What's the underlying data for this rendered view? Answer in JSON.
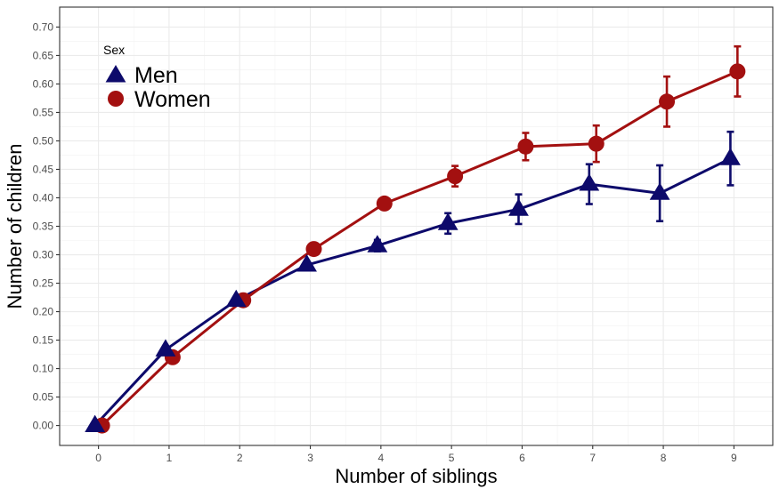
{
  "chart_data": {
    "type": "line",
    "title": "",
    "xlabel": "Number of siblings",
    "ylabel": "Number of children",
    "x": [
      0,
      1,
      2,
      3,
      4,
      5,
      6,
      7,
      8,
      9
    ],
    "xlim": [
      -0.55,
      9.55
    ],
    "ylim": [
      -0.035,
      0.735
    ],
    "x_ticks": [
      "0",
      "1",
      "2",
      "3",
      "4",
      "5",
      "6",
      "7",
      "8",
      "9"
    ],
    "y_ticks": [
      "0.00",
      "0.05",
      "0.10",
      "0.15",
      "0.20",
      "0.25",
      "0.30",
      "0.35",
      "0.40",
      "0.45",
      "0.50",
      "0.55",
      "0.60",
      "0.65",
      "0.70"
    ],
    "grid": true,
    "legend": {
      "title": "Sex",
      "position": "top-left"
    },
    "series": [
      {
        "name": "Men",
        "marker": "triangle",
        "color": "#0d0a6b",
        "values": [
          0.0,
          0.133,
          0.22,
          0.282,
          0.316,
          0.355,
          0.38,
          0.424,
          0.408,
          0.469
        ],
        "error": [
          0.0,
          0.004,
          0.004,
          0.006,
          0.01,
          0.018,
          0.026,
          0.035,
          0.049,
          0.047
        ]
      },
      {
        "name": "Women",
        "marker": "circle",
        "color": "#a31010",
        "values": [
          0.0,
          0.12,
          0.22,
          0.31,
          0.39,
          0.438,
          0.49,
          0.495,
          0.569,
          0.622
        ],
        "error": [
          0.0,
          0.004,
          0.004,
          0.006,
          0.01,
          0.018,
          0.024,
          0.032,
          0.044,
          0.044
        ]
      }
    ]
  }
}
